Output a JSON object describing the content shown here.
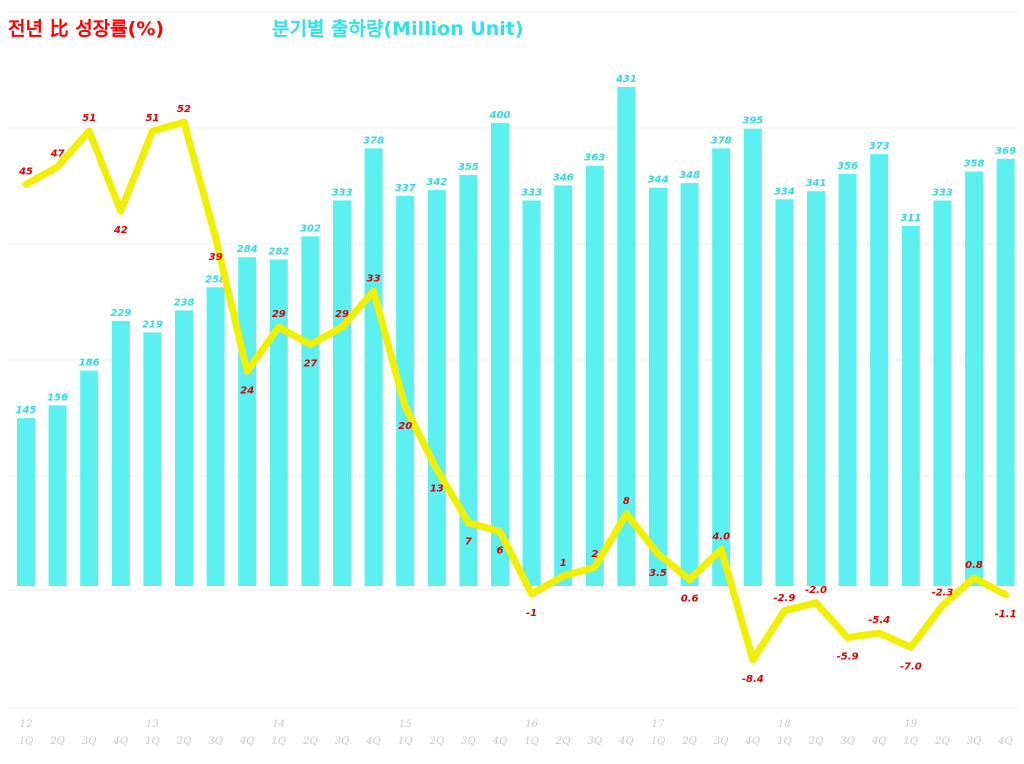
{
  "chart_data": {
    "type": "bar+line",
    "titles": {
      "growth": "전년 比 성장률(%)",
      "shipments": "분기별 출하량(Million Unit)"
    },
    "years": [
      "12",
      "13",
      "14",
      "15",
      "16",
      "17",
      "18",
      "19"
    ],
    "quarters": [
      "1Q",
      "2Q",
      "3Q",
      "4Q"
    ],
    "series": [
      {
        "name": "분기별 출하량(Million Unit)",
        "type": "bar",
        "color": "#5cf0f0",
        "values": [
          145,
          156,
          186,
          229,
          219,
          238,
          258,
          284,
          282,
          302,
          333,
          378,
          337,
          342,
          355,
          400,
          333,
          346,
          363,
          431,
          344,
          348,
          378,
          395,
          334,
          341,
          356,
          373,
          311,
          333,
          358,
          369
        ]
      },
      {
        "name": "전년 比 성장률(%)",
        "type": "line",
        "color": "#f0f000",
        "values": [
          45,
          47,
          51,
          42,
          51,
          52,
          39,
          24,
          29,
          27,
          29,
          33,
          20,
          13,
          7,
          6,
          -1,
          1,
          2,
          8,
          3.5,
          0.6,
          4.0,
          -8.4,
          -2.9,
          -2.0,
          -5.9,
          -5.4,
          -7.0,
          -2.3,
          0.8,
          -1.1
        ],
        "labels": [
          "45",
          "47",
          "51",
          "42",
          "51",
          "52",
          "39",
          "24",
          "29",
          "27",
          "29",
          "33",
          "20",
          "13",
          "7",
          "6",
          "-1",
          "1",
          "2",
          "8",
          "3.5",
          "0.6",
          "4.0",
          "-8.4",
          "-2.9",
          "-2.0",
          "-5.9",
          "-5.4",
          "-7.0",
          "-2.3",
          "0.8",
          "-1.1"
        ]
      }
    ],
    "bar_ylim": [
      0,
      431
    ],
    "line_ylim": [
      -10,
      55
    ],
    "grid": true,
    "legend": "top-left"
  }
}
